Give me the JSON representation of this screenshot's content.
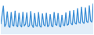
{
  "chart_data": {
    "type": "line",
    "color": "#3d8fd6",
    "tick_labels": false,
    "grid": false,
    "ylim": [
      0,
      100
    ],
    "values": [
      30,
      62,
      85,
      22,
      30,
      68,
      25,
      20,
      66,
      28,
      24,
      70,
      26,
      22,
      64,
      27,
      21,
      67,
      24,
      30,
      65,
      22,
      25,
      69,
      28,
      20,
      63,
      26,
      23,
      66,
      25,
      21,
      62,
      29,
      24,
      64,
      22,
      27,
      60,
      25,
      23,
      66,
      30,
      26,
      63,
      24,
      22,
      58,
      28,
      25,
      65,
      27,
      30,
      70,
      32,
      28,
      72,
      34,
      30,
      78,
      35,
      33,
      82,
      36,
      32,
      80,
      38,
      35,
      86,
      40,
      36,
      92
    ]
  }
}
